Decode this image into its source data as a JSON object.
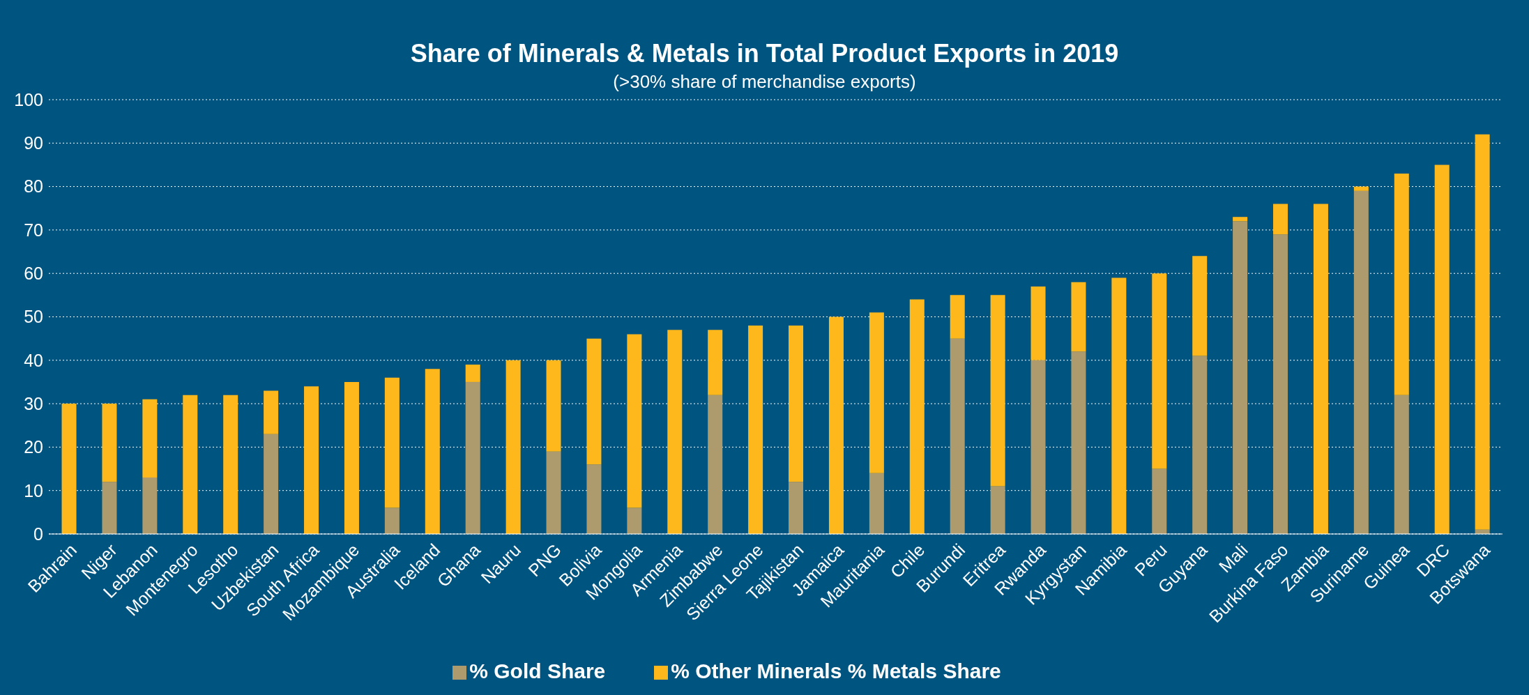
{
  "chart_data": {
    "type": "bar",
    "title": "Share of Minerals & Metals in Total Product Exports in 2019",
    "subtitle": "(>30% share of merchandise exports)",
    "categories": [
      "Bahrain",
      "Niger",
      "Lebanon",
      "Montenegro",
      "Lesotho",
      "Uzbekistan",
      "South Africa",
      "Mozambique",
      "Australia",
      "Iceland",
      "Ghana",
      "Nauru",
      "PNG",
      "Bolivia",
      "Mongolia",
      "Armenia",
      "Zimbabwe",
      "Sierra Leone",
      "Tajikistan",
      "Jamaica",
      "Mauritania",
      "Chile",
      "Burundi",
      "Eritrea",
      "Rwanda",
      "Kyrgystan",
      "Namibia",
      "Peru",
      "Guyana",
      "Mali",
      "Burkina Faso",
      "Zambia",
      "Suriname",
      "Guinea",
      "DRC",
      "Botswana"
    ],
    "series": [
      {
        "name": "% Gold Share",
        "color": "#ad9b6e",
        "values": [
          0,
          12,
          13,
          0,
          0,
          23,
          0,
          0,
          6,
          0,
          35,
          0,
          19,
          16,
          6,
          0,
          32,
          0,
          12,
          0,
          14,
          0,
          45,
          11,
          40,
          42,
          0,
          15,
          41,
          72,
          69,
          0,
          79,
          32,
          0,
          1
        ]
      },
      {
        "name": "% Other Minerals % Metals Share",
        "color": "#ffb81c",
        "values": [
          30,
          18,
          18,
          32,
          32,
          10,
          34,
          35,
          30,
          38,
          4,
          40,
          21,
          29,
          40,
          47,
          15,
          48,
          36,
          50,
          37,
          54,
          10,
          44,
          17,
          16,
          59,
          45,
          23,
          1,
          7,
          76,
          1,
          51,
          85,
          91
        ]
      }
    ],
    "stacked": true,
    "ylim": [
      0,
      100
    ],
    "yticks": [
      0,
      10,
      20,
      30,
      40,
      50,
      60,
      70,
      80,
      90,
      100
    ],
    "grid": "y",
    "legend": "bottom"
  }
}
